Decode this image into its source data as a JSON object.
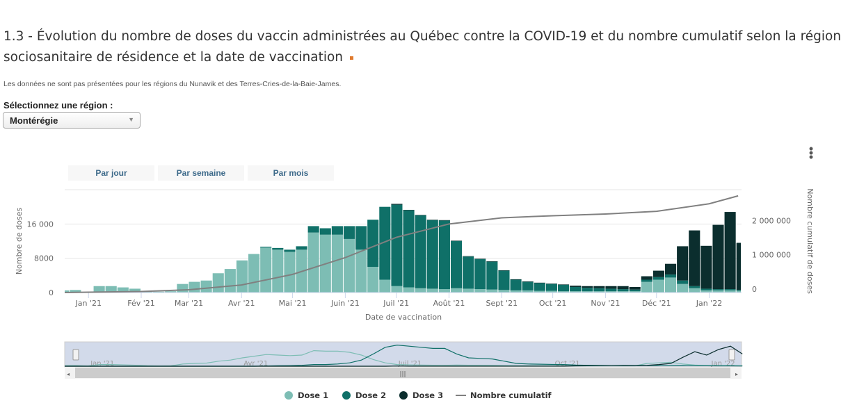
{
  "header": {
    "title": "1.3 - Évolution du nombre de doses du vaccin administrées au Québec contre la COVID-19 et du nombre cumulatif selon la région",
    "title_line2": "sociosanitaire de résidence et la date de vaccination",
    "note": "Les données ne sont pas présentées pour les régions du Nunavik et des Terres-Cries-de-la-Baie-James.",
    "select_label": "Sélectionnez une région :",
    "selected_region": "Montérégie",
    "accent": "#e07a2e"
  },
  "period_buttons": [
    "Par jour",
    "Par semaine",
    "Par mois"
  ],
  "chart_data": {
    "type": "bar",
    "stacked": true,
    "xlabel": "Date de vaccination",
    "ylabel": "Nombre de doses",
    "y2label": "Nombre cumulatif de doses",
    "ylim": [
      0,
      24000
    ],
    "y2lim": [
      0,
      3000000
    ],
    "yticks": [
      {
        "v": 0,
        "label": "0"
      },
      {
        "v": 8000,
        "label": "8000"
      },
      {
        "v": 16000,
        "label": "16 000"
      }
    ],
    "y2ticks": [
      {
        "v": 0,
        "label": "0"
      },
      {
        "v": 1000000,
        "label": "1 000 000"
      },
      {
        "v": 2000000,
        "label": "2 000 000"
      }
    ],
    "xlim": [
      "2020-12-18",
      "2022-01-20"
    ],
    "xticks": [
      {
        "d": "2021-01-01",
        "label": "Jan '21"
      },
      {
        "d": "2021-02-01",
        "label": "Fév '21"
      },
      {
        "d": "2021-03-01",
        "label": "Mar '21"
      },
      {
        "d": "2021-04-01",
        "label": "Avr '21"
      },
      {
        "d": "2021-05-01",
        "label": "Mai '21"
      },
      {
        "d": "2021-06-01",
        "label": "Juin '21"
      },
      {
        "d": "2021-07-01",
        "label": "Juil '21"
      },
      {
        "d": "2021-08-01",
        "label": "Août '21"
      },
      {
        "d": "2021-09-01",
        "label": "Sept '21"
      },
      {
        "d": "2021-10-01",
        "label": "Oct '21"
      },
      {
        "d": "2021-11-01",
        "label": "Nov '21"
      },
      {
        "d": "2021-12-01",
        "label": "Déc '21"
      },
      {
        "d": "2022-01-01",
        "label": "Jan '22"
      }
    ],
    "navigator_labels": [
      {
        "d": "2021-01-01",
        "label": "Jan '21"
      },
      {
        "d": "2021-04-01",
        "label": "Avr '21"
      },
      {
        "d": "2021-07-01",
        "label": "Juil '21"
      },
      {
        "d": "2021-10-01",
        "label": "Oct '21"
      },
      {
        "d": "2022-01-01",
        "label": "Jan '22"
      }
    ],
    "week_start": [
      "2020-12-14",
      "2020-12-21",
      "2020-12-28",
      "2021-01-04",
      "2021-01-11",
      "2021-01-18",
      "2021-01-25",
      "2021-02-01",
      "2021-02-08",
      "2021-02-15",
      "2021-02-22",
      "2021-03-01",
      "2021-03-08",
      "2021-03-15",
      "2021-03-22",
      "2021-03-29",
      "2021-04-05",
      "2021-04-12",
      "2021-04-19",
      "2021-04-26",
      "2021-05-03",
      "2021-05-10",
      "2021-05-17",
      "2021-05-24",
      "2021-05-31",
      "2021-06-07",
      "2021-06-14",
      "2021-06-21",
      "2021-06-28",
      "2021-07-05",
      "2021-07-12",
      "2021-07-19",
      "2021-07-26",
      "2021-08-02",
      "2021-08-09",
      "2021-08-16",
      "2021-08-23",
      "2021-08-30",
      "2021-09-06",
      "2021-09-13",
      "2021-09-20",
      "2021-09-27",
      "2021-10-04",
      "2021-10-11",
      "2021-10-18",
      "2021-10-25",
      "2021-11-01",
      "2021-11-08",
      "2021-11-15",
      "2021-11-22",
      "2021-11-29",
      "2021-12-06",
      "2021-12-13",
      "2021-12-20",
      "2021-12-27",
      "2022-01-03",
      "2022-01-10",
      "2022-01-17"
    ],
    "series": [
      {
        "name": "Dose 1",
        "color": "#7dbdb4",
        "values": [
          500,
          600,
          150,
          1500,
          1500,
          1200,
          900,
          400,
          200,
          300,
          2000,
          2500,
          2800,
          4500,
          5500,
          7500,
          9000,
          10500,
          10000,
          9500,
          10000,
          14000,
          13500,
          13500,
          12500,
          10000,
          6000,
          3000,
          1500,
          1200,
          1000,
          900,
          800,
          1000,
          900,
          800,
          700,
          600,
          500,
          500,
          400,
          400,
          300,
          300,
          300,
          300,
          300,
          300,
          300,
          2500,
          3000,
          3500,
          2000,
          1000,
          500,
          500,
          500,
          400
        ]
      },
      {
        "name": "Dose 2",
        "color": "#0f7068",
        "values": [
          0,
          0,
          0,
          0,
          0,
          0,
          0,
          0,
          0,
          0,
          0,
          0,
          0,
          0,
          0,
          0,
          0,
          200,
          400,
          500,
          800,
          1500,
          1500,
          2000,
          3000,
          5500,
          11000,
          17000,
          19000,
          18000,
          17000,
          16000,
          16000,
          11000,
          7500,
          7000,
          6500,
          4500,
          2500,
          2000,
          1800,
          1600,
          1500,
          1000,
          800,
          700,
          600,
          500,
          400,
          500,
          600,
          700,
          800,
          500,
          400,
          300,
          300,
          200
        ]
      },
      {
        "name": "Dose 3",
        "color": "#0b2e2e",
        "values": [
          0,
          0,
          0,
          0,
          0,
          0,
          0,
          0,
          0,
          0,
          0,
          0,
          0,
          0,
          0,
          0,
          0,
          0,
          0,
          0,
          0,
          0,
          0,
          0,
          0,
          0,
          0,
          0,
          200,
          100,
          100,
          100,
          100,
          100,
          100,
          100,
          100,
          100,
          100,
          100,
          100,
          100,
          100,
          300,
          400,
          500,
          600,
          700,
          600,
          800,
          1500,
          2500,
          8000,
          13000,
          10000,
          15000,
          18000,
          11000
        ]
      }
    ],
    "cumulative": {
      "name": "Nombre cumulatif",
      "color": "#808080",
      "points": [
        [
          "2020-12-18",
          0
        ],
        [
          "2021-01-01",
          10000
        ],
        [
          "2021-02-01",
          30000
        ],
        [
          "2021-03-01",
          80000
        ],
        [
          "2021-04-01",
          220000
        ],
        [
          "2021-05-01",
          530000
        ],
        [
          "2021-06-01",
          1020000
        ],
        [
          "2021-07-01",
          1610000
        ],
        [
          "2021-08-01",
          2000000
        ],
        [
          "2021-09-01",
          2180000
        ],
        [
          "2021-10-01",
          2240000
        ],
        [
          "2021-11-01",
          2290000
        ],
        [
          "2021-12-01",
          2370000
        ],
        [
          "2022-01-01",
          2590000
        ],
        [
          "2022-01-18",
          2820000
        ]
      ]
    },
    "legend": [
      "Dose 1",
      "Dose 2",
      "Dose 3",
      "Nombre cumulatif"
    ],
    "legend_position": "bottom",
    "grid": true
  }
}
